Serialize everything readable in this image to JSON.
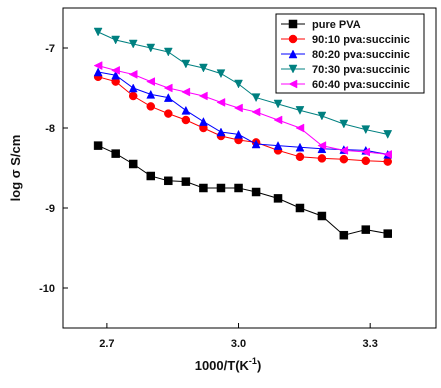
{
  "chart_data": {
    "type": "line",
    "title": "",
    "xlabel": "1000/T(",
    "xlabel_unit": "K",
    "xlabel_sup": "-1",
    "xlabel_close": ")",
    "ylabel": "log σ  S/cm",
    "xlim": [
      2.6,
      3.45
    ],
    "ylim": [
      -10.5,
      -6.5
    ],
    "x_ticks": [
      2.7,
      3.0,
      3.3
    ],
    "x_tick_labels": [
      "2.7",
      "3.0",
      "3.3"
    ],
    "y_ticks": [
      -10,
      -9,
      -8,
      -7
    ],
    "y_tick_labels": [
      "-10",
      "-9",
      "-8",
      "-7"
    ],
    "grid": false,
    "legend_position": "top-right",
    "x": [
      2.68,
      2.72,
      2.76,
      2.8,
      2.84,
      2.88,
      2.92,
      2.96,
      3.0,
      3.04,
      3.09,
      3.14,
      3.19,
      3.24,
      3.29,
      3.34
    ],
    "series": [
      {
        "name": "pure PVA",
        "color": "#000000",
        "marker": "square",
        "values": [
          -8.22,
          -8.32,
          -8.45,
          -8.6,
          -8.66,
          -8.67,
          -8.75,
          -8.75,
          -8.75,
          -8.8,
          -8.88,
          -9.0,
          -9.1,
          -9.34,
          -9.27,
          -9.32
        ]
      },
      {
        "name": "90:10 pva:succinic",
        "color": "#ff0000",
        "marker": "circle",
        "values": [
          -7.36,
          -7.42,
          -7.6,
          -7.73,
          -7.82,
          -7.9,
          -8.0,
          -8.1,
          -8.15,
          -8.18,
          -8.28,
          -8.36,
          -8.38,
          -8.39,
          -8.41,
          -8.42
        ]
      },
      {
        "name": "80:20 pva:succinic",
        "color": "#0000ff",
        "marker": "triangle-up",
        "values": [
          -7.3,
          -7.34,
          -7.5,
          -7.58,
          -7.62,
          -7.78,
          -7.92,
          -8.05,
          -8.08,
          -8.2,
          -8.22,
          -8.24,
          -8.26,
          -8.27,
          -8.28,
          -8.33
        ]
      },
      {
        "name": "70:30 pva:succinic",
        "color": "#008080",
        "marker": "triangle-down",
        "values": [
          -6.8,
          -6.9,
          -6.95,
          -7.0,
          -7.05,
          -7.2,
          -7.25,
          -7.32,
          -7.45,
          -7.62,
          -7.7,
          -7.78,
          -7.85,
          -7.95,
          -8.02,
          -8.08
        ]
      },
      {
        "name": "60:40 pva:succinic",
        "color": "#ff00ff",
        "marker": "triangle-left",
        "values": [
          -7.22,
          -7.28,
          -7.33,
          -7.42,
          -7.5,
          -7.55,
          -7.6,
          -7.68,
          -7.75,
          -7.8,
          -7.9,
          -8.0,
          -8.22,
          -8.28,
          -8.3,
          -8.33
        ]
      }
    ]
  }
}
